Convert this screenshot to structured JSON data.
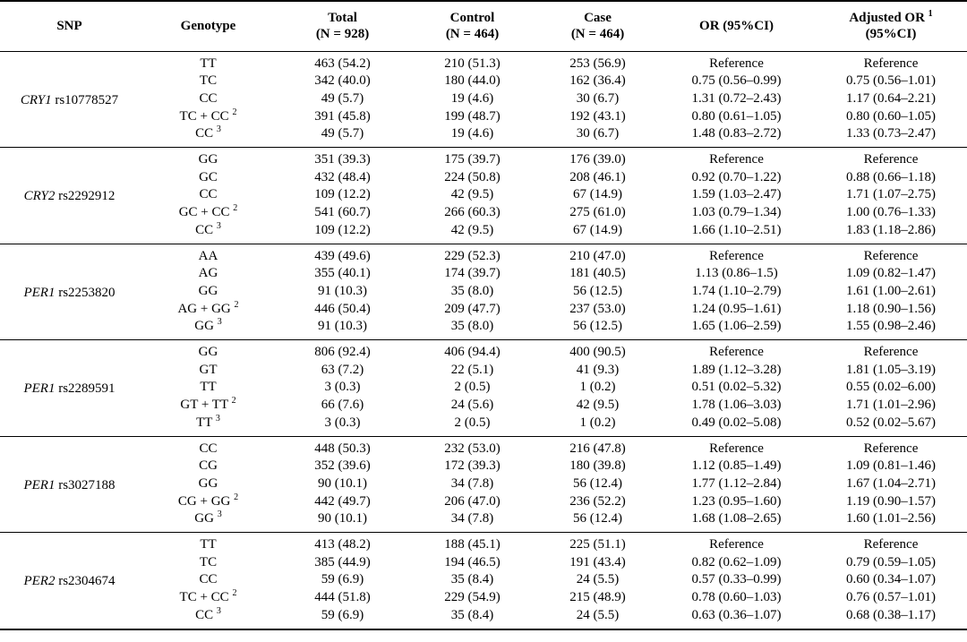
{
  "headers": {
    "snp": "SNP",
    "genotype": "Genotype",
    "total": "Total",
    "total_n": "(N = 928)",
    "control": "Control",
    "control_n": "(N = 464)",
    "case": "Case",
    "case_n": "(N = 464)",
    "or": "OR (95%CI)",
    "adjusted_or": "Adjusted OR",
    "adjusted_or_sup": "1",
    "adjusted_or_ci": "(95%CI)"
  },
  "groups": [
    {
      "gene": "CRY1",
      "snp": "rs10778527",
      "rows": [
        {
          "genotype": "TT",
          "sup": "",
          "total": "463 (54.2)",
          "control": "210 (51.3)",
          "case": "253 (56.9)",
          "or": "Reference",
          "aor": "Reference"
        },
        {
          "genotype": "TC",
          "sup": "",
          "total": "342 (40.0)",
          "control": "180 (44.0)",
          "case": "162 (36.4)",
          "or": "0.75 (0.56–0.99)",
          "aor": "0.75 (0.56–1.01)"
        },
        {
          "genotype": "CC",
          "sup": "",
          "total": "49 (5.7)",
          "control": "19 (4.6)",
          "case": "30 (6.7)",
          "or": "1.31 (0.72–2.43)",
          "aor": "1.17 (0.64–2.21)"
        },
        {
          "genotype": "TC + CC",
          "sup": "2",
          "total": "391 (45.8)",
          "control": "199 (48.7)",
          "case": "192 (43.1)",
          "or": "0.80 (0.61–1.05)",
          "aor": "0.80 (0.60–1.05)"
        },
        {
          "genotype": "CC",
          "sup": "3",
          "total": "49 (5.7)",
          "control": "19 (4.6)",
          "case": "30 (6.7)",
          "or": "1.48 (0.83–2.72)",
          "aor": "1.33 (0.73–2.47)"
        }
      ]
    },
    {
      "gene": "CRY2",
      "snp": "rs2292912",
      "rows": [
        {
          "genotype": "GG",
          "sup": "",
          "total": "351 (39.3)",
          "control": "175 (39.7)",
          "case": "176 (39.0)",
          "or": "Reference",
          "aor": "Reference"
        },
        {
          "genotype": "GC",
          "sup": "",
          "total": "432 (48.4)",
          "control": "224 (50.8)",
          "case": "208 (46.1)",
          "or": "0.92 (0.70–1.22)",
          "aor": "0.88 (0.66–1.18)"
        },
        {
          "genotype": "CC",
          "sup": "",
          "total": "109 (12.2)",
          "control": "42 (9.5)",
          "case": "67 (14.9)",
          "or": "1.59 (1.03–2.47)",
          "aor": "1.71 (1.07–2.75)"
        },
        {
          "genotype": "GC + CC",
          "sup": "2",
          "total": "541 (60.7)",
          "control": "266 (60.3)",
          "case": "275 (61.0)",
          "or": "1.03 (0.79–1.34)",
          "aor": "1.00 (0.76–1.33)"
        },
        {
          "genotype": "CC",
          "sup": "3",
          "total": "109 (12.2)",
          "control": "42 (9.5)",
          "case": "67 (14.9)",
          "or": "1.66 (1.10–2.51)",
          "aor": "1.83 (1.18–2.86)"
        }
      ]
    },
    {
      "gene": "PER1",
      "snp": "rs2253820",
      "rows": [
        {
          "genotype": "AA",
          "sup": "",
          "total": "439 (49.6)",
          "control": "229 (52.3)",
          "case": "210 (47.0)",
          "or": "Reference",
          "aor": "Reference"
        },
        {
          "genotype": "AG",
          "sup": "",
          "total": "355 (40.1)",
          "control": "174 (39.7)",
          "case": "181 (40.5)",
          "or": "1.13 (0.86–1.5)",
          "aor": "1.09 (0.82–1.47)"
        },
        {
          "genotype": "GG",
          "sup": "",
          "total": "91 (10.3)",
          "control": "35 (8.0)",
          "case": "56 (12.5)",
          "or": "1.74 (1.10–2.79)",
          "aor": "1.61 (1.00–2.61)"
        },
        {
          "genotype": "AG + GG",
          "sup": "2",
          "total": "446 (50.4)",
          "control": "209 (47.7)",
          "case": "237 (53.0)",
          "or": "1.24 (0.95–1.61)",
          "aor": "1.18 (0.90–1.56)"
        },
        {
          "genotype": "GG",
          "sup": "3",
          "total": "91 (10.3)",
          "control": "35 (8.0)",
          "case": "56 (12.5)",
          "or": "1.65 (1.06–2.59)",
          "aor": "1.55 (0.98–2.46)"
        }
      ]
    },
    {
      "gene": "PER1",
      "snp": "rs2289591",
      "rows": [
        {
          "genotype": "GG",
          "sup": "",
          "total": "806 (92.4)",
          "control": "406 (94.4)",
          "case": "400 (90.5)",
          "or": "Reference",
          "aor": "Reference"
        },
        {
          "genotype": "GT",
          "sup": "",
          "total": "63 (7.2)",
          "control": "22 (5.1)",
          "case": "41 (9.3)",
          "or": "1.89 (1.12–3.28)",
          "aor": "1.81 (1.05–3.19)"
        },
        {
          "genotype": "TT",
          "sup": "",
          "total": "3 (0.3)",
          "control": "2 (0.5)",
          "case": "1 (0.2)",
          "or": "0.51 (0.02–5.32)",
          "aor": "0.55 (0.02–6.00)"
        },
        {
          "genotype": "GT + TT",
          "sup": "2",
          "total": "66 (7.6)",
          "control": "24 (5.6)",
          "case": "42 (9.5)",
          "or": "1.78 (1.06–3.03)",
          "aor": "1.71 (1.01–2.96)"
        },
        {
          "genotype": "TT",
          "sup": "3",
          "total": "3 (0.3)",
          "control": "2 (0.5)",
          "case": "1 (0.2)",
          "or": "0.49 (0.02–5.08)",
          "aor": "0.52 (0.02–5.67)"
        }
      ]
    },
    {
      "gene": "PER1",
      "snp": "rs3027188",
      "rows": [
        {
          "genotype": "CC",
          "sup": "",
          "total": "448 (50.3)",
          "control": "232 (53.0)",
          "case": "216 (47.8)",
          "or": "Reference",
          "aor": "Reference"
        },
        {
          "genotype": "CG",
          "sup": "",
          "total": "352 (39.6)",
          "control": "172 (39.3)",
          "case": "180 (39.8)",
          "or": "1.12 (0.85–1.49)",
          "aor": "1.09 (0.81–1.46)"
        },
        {
          "genotype": "GG",
          "sup": "",
          "total": "90 (10.1)",
          "control": "34 (7.8)",
          "case": "56 (12.4)",
          "or": "1.77 (1.12–2.84)",
          "aor": "1.67 (1.04–2.71)"
        },
        {
          "genotype": "CG + GG",
          "sup": "2",
          "total": "442 (49.7)",
          "control": "206 (47.0)",
          "case": "236 (52.2)",
          "or": "1.23 (0.95–1.60)",
          "aor": "1.19 (0.90–1.57)"
        },
        {
          "genotype": "GG",
          "sup": "3",
          "total": "90 (10.1)",
          "control": "34 (7.8)",
          "case": "56 (12.4)",
          "or": "1.68 (1.08–2.65)",
          "aor": "1.60 (1.01–2.56)"
        }
      ]
    },
    {
      "gene": "PER2",
      "snp": "rs2304674",
      "rows": [
        {
          "genotype": "TT",
          "sup": "",
          "total": "413 (48.2)",
          "control": "188 (45.1)",
          "case": "225 (51.1)",
          "or": "Reference",
          "aor": "Reference"
        },
        {
          "genotype": "TC",
          "sup": "",
          "total": "385 (44.9)",
          "control": "194 (46.5)",
          "case": "191 (43.4)",
          "or": "0.82 (0.62–1.09)",
          "aor": "0.79 (0.59–1.05)"
        },
        {
          "genotype": "CC",
          "sup": "",
          "total": "59 (6.9)",
          "control": "35 (8.4)",
          "case": "24 (5.5)",
          "or": "0.57 (0.33–0.99)",
          "aor": "0.60 (0.34–1.07)"
        },
        {
          "genotype": "TC + CC",
          "sup": "2",
          "total": "444 (51.8)",
          "control": "229 (54.9)",
          "case": "215 (48.9)",
          "or": "0.78 (0.60–1.03)",
          "aor": "0.76 (0.57–1.01)"
        },
        {
          "genotype": "CC",
          "sup": "3",
          "total": "59 (6.9)",
          "control": "35 (8.4)",
          "case": "24 (5.5)",
          "or": "0.63 (0.36–1.07)",
          "aor": "0.68 (0.38–1.17)"
        }
      ]
    }
  ]
}
